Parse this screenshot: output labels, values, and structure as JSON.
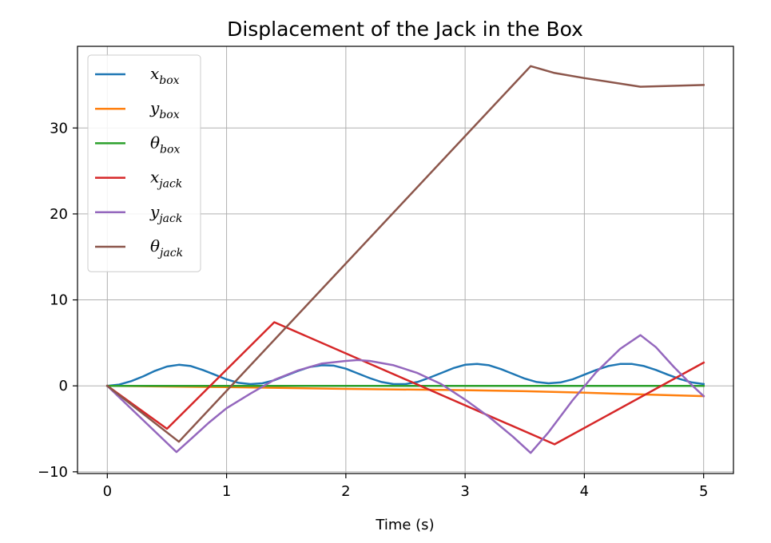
{
  "chart_data": {
    "type": "line",
    "title": "Displacement of the Jack in the Box",
    "xlabel": "Time (s)",
    "ylabel": "",
    "xlim": [
      -0.25,
      5.25
    ],
    "ylim": [
      -10.2,
      39.5
    ],
    "xticks": [
      0,
      1,
      2,
      3,
      4,
      5
    ],
    "xtick_labels": [
      "0",
      "1",
      "2",
      "3",
      "4",
      "5"
    ],
    "yticks": [
      -10,
      0,
      10,
      20,
      30
    ],
    "ytick_labels": [
      "−10",
      "0",
      "10",
      "20",
      "30"
    ],
    "grid": true,
    "legend_position": "top-left",
    "series": [
      {
        "name": "x_box",
        "label_main": "x",
        "label_sub": "box",
        "color": "#1f77b4",
        "x": [
          0,
          0.1,
          0.2,
          0.3,
          0.4,
          0.5,
          0.6,
          0.7,
          0.8,
          0.9,
          1.0,
          1.1,
          1.2,
          1.3,
          1.4,
          1.5,
          1.6,
          1.7,
          1.8,
          1.9,
          2.0,
          2.1,
          2.2,
          2.3,
          2.4,
          2.5,
          2.6,
          2.7,
          2.8,
          2.9,
          3.0,
          3.1,
          3.2,
          3.3,
          3.4,
          3.5,
          3.6,
          3.7,
          3.8,
          3.9,
          4.0,
          4.1,
          4.2,
          4.3,
          4.4,
          4.5,
          4.6,
          4.7,
          4.8,
          4.9,
          5.0
        ],
        "y": [
          0,
          0.15,
          0.55,
          1.1,
          1.75,
          2.25,
          2.45,
          2.3,
          1.85,
          1.3,
          0.75,
          0.35,
          0.2,
          0.3,
          0.65,
          1.2,
          1.75,
          2.2,
          2.4,
          2.35,
          2.0,
          1.45,
          0.9,
          0.45,
          0.2,
          0.2,
          0.45,
          0.95,
          1.5,
          2.05,
          2.45,
          2.55,
          2.4,
          1.95,
          1.4,
          0.85,
          0.45,
          0.3,
          0.4,
          0.75,
          1.3,
          1.85,
          2.3,
          2.55,
          2.55,
          2.3,
          1.85,
          1.3,
          0.8,
          0.4,
          0.2
        ]
      },
      {
        "name": "y_box",
        "label_main": "y",
        "label_sub": "box",
        "color": "#ff7f0e",
        "x": [
          0,
          1,
          2,
          3,
          3.5,
          4,
          4.5,
          5
        ],
        "y": [
          0,
          -0.15,
          -0.35,
          -0.5,
          -0.62,
          -0.8,
          -1.0,
          -1.2
        ]
      },
      {
        "name": "theta_box",
        "label_main": "θ",
        "label_sub": "box",
        "color": "#2ca02c",
        "x": [
          0,
          1,
          2,
          3,
          4,
          5
        ],
        "y": [
          0,
          0,
          0,
          0,
          0,
          0
        ]
      },
      {
        "name": "x_jack",
        "label_main": "x",
        "label_sub": "jack",
        "color": "#d62728",
        "x": [
          0,
          0.5,
          1.4,
          3.75,
          5.0
        ],
        "y": [
          0,
          -5.0,
          7.4,
          -6.8,
          2.7
        ]
      },
      {
        "name": "y_jack",
        "label_main": "y",
        "label_sub": "jack",
        "color": "#9467bd",
        "x": [
          0,
          0.58,
          0.7,
          0.85,
          1.0,
          1.2,
          1.4,
          1.6,
          1.8,
          2.0,
          2.1,
          2.2,
          2.4,
          2.6,
          2.8,
          3.0,
          3.2,
          3.4,
          3.55,
          3.7,
          3.9,
          4.1,
          4.3,
          4.47,
          4.6,
          4.75,
          4.9,
          5.0
        ],
        "y": [
          0,
          -7.7,
          -6.2,
          -4.3,
          -2.6,
          -0.9,
          0.7,
          1.8,
          2.6,
          2.9,
          3.0,
          2.9,
          2.4,
          1.5,
          0.2,
          -1.6,
          -3.6,
          -5.9,
          -7.8,
          -5.4,
          -1.7,
          1.6,
          4.3,
          5.9,
          4.5,
          2.2,
          0.1,
          -1.2
        ]
      },
      {
        "name": "theta_jack",
        "label_main": "θ",
        "label_sub": "jack",
        "color": "#8c564b",
        "x": [
          0,
          0.6,
          3.55,
          3.75,
          4.0,
          4.47,
          5.0
        ],
        "y": [
          0,
          -6.5,
          37.2,
          36.4,
          35.8,
          34.8,
          35.0
        ]
      }
    ]
  }
}
